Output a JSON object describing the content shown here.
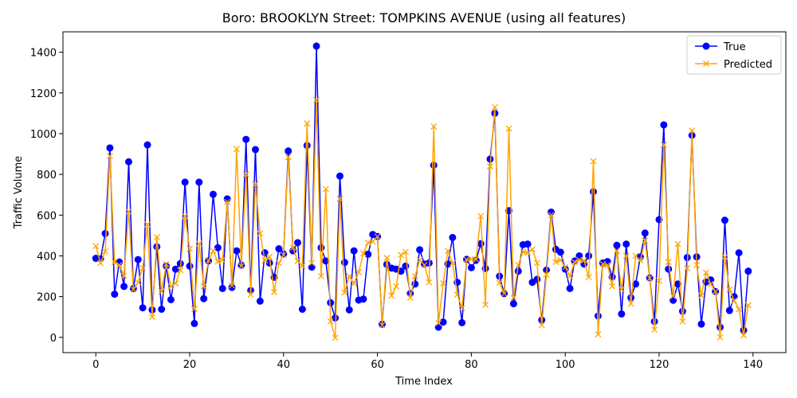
{
  "chart_data": {
    "type": "line",
    "title": "Boro: BROOKLYN Street: TOMPKINS AVENUE (using all features)",
    "xlabel": "Time Index",
    "ylabel": "Traffic Volume",
    "xlim": [
      -7,
      147
    ],
    "ylim": [
      -75,
      1500
    ],
    "xticks": [
      0,
      20,
      40,
      60,
      80,
      100,
      120,
      140
    ],
    "yticks": [
      0,
      200,
      400,
      600,
      800,
      1000,
      1200,
      1400
    ],
    "grid": false,
    "legend_position": "top-right",
    "series": [
      {
        "name": "True",
        "color": "#0000ff",
        "marker": "circle",
        "values": [
          388,
          385,
          510,
          930,
          212,
          370,
          250,
          862,
          240,
          382,
          145,
          945,
          135,
          445,
          138,
          350,
          185,
          335,
          362,
          762,
          350,
          68,
          762,
          190,
          375,
          702,
          440,
          240,
          680,
          245,
          425,
          355,
          972,
          230,
          922,
          178,
          415,
          365,
          295,
          435,
          410,
          915,
          425,
          465,
          138,
          942,
          345,
          1430,
          440,
          375,
          170,
          95,
          792,
          368,
          135,
          425,
          183,
          188,
          408,
          505,
          495,
          65,
          358,
          340,
          335,
          325,
          350,
          215,
          262,
          430,
          360,
          365,
          845,
          50,
          75,
          360,
          490,
          270,
          72,
          383,
          342,
          378,
          460,
          338,
          875,
          1100,
          300,
          215,
          622,
          165,
          325,
          455,
          458,
          270,
          285,
          85,
          330,
          615,
          432,
          418,
          335,
          240,
          375,
          400,
          360,
          400,
          715,
          105,
          365,
          372,
          297,
          452,
          115,
          458,
          195,
          262,
          395,
          512,
          292,
          78,
          578,
          1043,
          335,
          182,
          262,
          128,
          392,
          992,
          395,
          65,
          272,
          282,
          225,
          50,
          575,
          132,
          200,
          415,
          35,
          325
        ]
      },
      {
        "name": "Predicted",
        "color": "#ffa500",
        "marker": "x",
        "values": [
          448,
          365,
          422,
          890,
          370,
          355,
          302,
          618,
          235,
          270,
          340,
          555,
          100,
          492,
          225,
          360,
          250,
          265,
          330,
          595,
          435,
          140,
          460,
          250,
          378,
          425,
          372,
          380,
          665,
          255,
          925,
          350,
          800,
          210,
          752,
          510,
          378,
          395,
          222,
          365,
          405,
          885,
          440,
          375,
          350,
          1050,
          365,
          1165,
          300,
          728,
          80,
          -2,
          680,
          220,
          300,
          265,
          320,
          412,
          465,
          470,
          495,
          60,
          390,
          205,
          250,
          405,
          420,
          195,
          300,
          380,
          355,
          270,
          1035,
          70,
          265,
          425,
          365,
          210,
          145,
          382,
          385,
          382,
          595,
          160,
          840,
          1130,
          268,
          215,
          1025,
          195,
          355,
          420,
          415,
          432,
          365,
          60,
          308,
          600,
          370,
          380,
          345,
          300,
          370,
          380,
          378,
          295,
          865,
          15,
          360,
          355,
          250,
          425,
          235,
          400,
          165,
          400,
          378,
          475,
          290,
          38,
          278,
          945,
          370,
          202,
          458,
          78,
          340,
          1015,
          355,
          205,
          318,
          262,
          225,
          0,
          395,
          235,
          180,
          138,
          10,
          158
        ]
      }
    ]
  }
}
